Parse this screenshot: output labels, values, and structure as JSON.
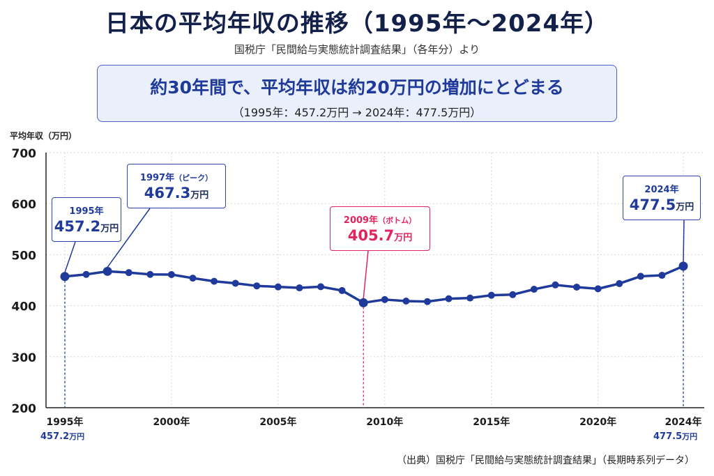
{
  "title": "日本の平均年収の推移（1995年〜2024年）",
  "subtitle": "国税庁「民間給与実態統計調査結果」（各年分）より",
  "summary": {
    "main": "約30年間で、平均年収は約20万円の増加にとどまる",
    "sub": "（1995年：457.2万円 → 2024年：477.5万円）"
  },
  "source": "（出典）国税庁「民間給与実態統計調査結果」（長期時系列データ）",
  "callouts": {
    "start": {
      "year": "1995年",
      "value": "457.2",
      "unit": "万円"
    },
    "peak": {
      "year": "1997年",
      "note": "（ピーク）",
      "value": "467.3",
      "unit": "万円"
    },
    "bottom": {
      "year": "2009年",
      "note": "（ボトム）",
      "value": "405.7",
      "unit": "万円"
    },
    "end": {
      "year": "2024年",
      "value": "477.5",
      "unit": "万円"
    }
  },
  "edge_labels": {
    "left": {
      "value": "457.2",
      "unit": "万円"
    },
    "right": {
      "value": "477.5",
      "unit": "万円"
    }
  },
  "colors": {
    "line": "#1f3a9a",
    "bottom_accent": "#e0245e",
    "grid": "#d3d6dc"
  },
  "chart_data": {
    "type": "line",
    "title": "日本の平均年収の推移（1995年〜2024年）",
    "ylabel": "平均年収（万円）",
    "xlabel": "",
    "ylim": [
      200,
      700
    ],
    "yticks": [
      200,
      300,
      400,
      500,
      600,
      700
    ],
    "xtick_labels": [
      {
        "year": 1995,
        "label": "1995年"
      },
      {
        "year": 2000,
        "label": "2000年"
      },
      {
        "year": 2005,
        "label": "2005年"
      },
      {
        "year": 2010,
        "label": "2010年"
      },
      {
        "year": 2015,
        "label": "2015年"
      },
      {
        "year": 2020,
        "label": "2020年"
      },
      {
        "year": 2024,
        "label": "2024年"
      }
    ],
    "grid": true,
    "series": [
      {
        "x": [
          1995,
          1996,
          1997,
          1998,
          1999,
          2000,
          2001,
          2002,
          2003,
          2004,
          2005,
          2006,
          2007,
          2008,
          2009,
          2010,
          2011,
          2012,
          2013,
          2014,
          2015,
          2016,
          2017,
          2018,
          2019,
          2020,
          2021,
          2022,
          2023,
          2024
        ],
        "values": [
          457.2,
          461.3,
          467.3,
          464.8,
          461.3,
          461.0,
          454.0,
          447.8,
          443.9,
          438.8,
          436.8,
          434.9,
          437.2,
          429.6,
          405.7,
          412.0,
          409.0,
          408.0,
          413.6,
          415.0,
          420.4,
          421.6,
          432.2,
          440.7,
          436.4,
          433.1,
          443.3,
          457.6,
          459.5,
          477.5
        ]
      }
    ]
  }
}
